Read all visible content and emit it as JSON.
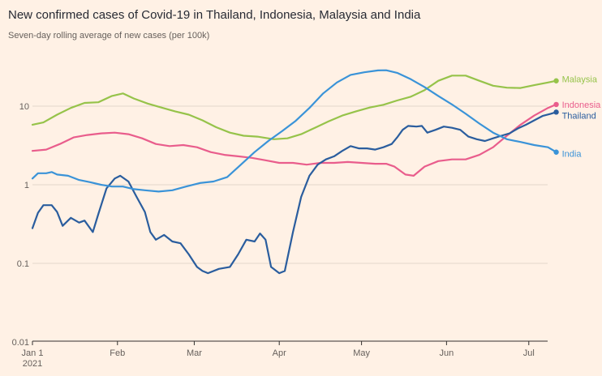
{
  "title": "New confirmed cases of Covid-19 in Thailand, Indonesia, Malaysia and India",
  "subtitle": "Seven-day rolling average of new cases (per 100k)",
  "chart_data": {
    "type": "line",
    "y_scale": "log",
    "ylim": [
      0.01,
      30
    ],
    "xlim": [
      "2021-01-01",
      "2021-07-12"
    ],
    "grid": "horizontal",
    "legend_placement": "direct labels at line ends",
    "y_ticks": [
      {
        "value": 10,
        "label": "10"
      },
      {
        "value": 1,
        "label": "1"
      },
      {
        "value": 0.1,
        "label": "0.1"
      },
      {
        "value": 0.01,
        "label": "0.01"
      }
    ],
    "x_ticks": [
      {
        "date": "2021-01-01",
        "label": "Jan 1",
        "sublabel": "2021"
      },
      {
        "date": "2021-02-01",
        "label": "Feb"
      },
      {
        "date": "2021-03-01",
        "label": "Mar"
      },
      {
        "date": "2021-04-01",
        "label": "Apr"
      },
      {
        "date": "2021-05-01",
        "label": "May"
      },
      {
        "date": "2021-06-01",
        "label": "Jun"
      },
      {
        "date": "2021-07-01",
        "label": "Jul"
      }
    ],
    "series": [
      {
        "name": "Malaysia",
        "color": "#96c34a",
        "points": [
          [
            "2021-01-01",
            5.8
          ],
          [
            "2021-01-05",
            6.2
          ],
          [
            "2021-01-10",
            7.8
          ],
          [
            "2021-01-15",
            9.5
          ],
          [
            "2021-01-20",
            11
          ],
          [
            "2021-01-25",
            11.2
          ],
          [
            "2021-01-30",
            13.5
          ],
          [
            "2021-02-03",
            14.5
          ],
          [
            "2021-02-07",
            12.5
          ],
          [
            "2021-02-12",
            10.8
          ],
          [
            "2021-02-17",
            9.6
          ],
          [
            "2021-02-22",
            8.6
          ],
          [
            "2021-02-27",
            7.8
          ],
          [
            "2021-03-04",
            6.6
          ],
          [
            "2021-03-09",
            5.4
          ],
          [
            "2021-03-14",
            4.6
          ],
          [
            "2021-03-19",
            4.2
          ],
          [
            "2021-03-24",
            4.1
          ],
          [
            "2021-03-30",
            3.8
          ],
          [
            "2021-04-04",
            3.9
          ],
          [
            "2021-04-09",
            4.4
          ],
          [
            "2021-04-14",
            5.3
          ],
          [
            "2021-04-19",
            6.4
          ],
          [
            "2021-04-24",
            7.6
          ],
          [
            "2021-04-29",
            8.6
          ],
          [
            "2021-05-04",
            9.6
          ],
          [
            "2021-05-09",
            10.4
          ],
          [
            "2021-05-14",
            11.8
          ],
          [
            "2021-05-19",
            13.2
          ],
          [
            "2021-05-24",
            16
          ],
          [
            "2021-05-29",
            21
          ],
          [
            "2021-06-03",
            24.5
          ],
          [
            "2021-06-08",
            24.5
          ],
          [
            "2021-06-13",
            21
          ],
          [
            "2021-06-18",
            18.2
          ],
          [
            "2021-06-23",
            17.2
          ],
          [
            "2021-06-28",
            17
          ],
          [
            "2021-07-03",
            18.5
          ],
          [
            "2021-07-08",
            20
          ],
          [
            "2021-07-11",
            21
          ]
        ]
      },
      {
        "name": "Indonesia",
        "color": "#e95d8c",
        "points": [
          [
            "2021-01-01",
            2.7
          ],
          [
            "2021-01-06",
            2.8
          ],
          [
            "2021-01-11",
            3.3
          ],
          [
            "2021-01-16",
            4.0
          ],
          [
            "2021-01-21",
            4.3
          ],
          [
            "2021-01-26",
            4.5
          ],
          [
            "2021-01-31",
            4.6
          ],
          [
            "2021-02-05",
            4.4
          ],
          [
            "2021-02-10",
            3.9
          ],
          [
            "2021-02-15",
            3.3
          ],
          [
            "2021-02-20",
            3.1
          ],
          [
            "2021-02-25",
            3.2
          ],
          [
            "2021-03-02",
            3.0
          ],
          [
            "2021-03-07",
            2.6
          ],
          [
            "2021-03-12",
            2.4
          ],
          [
            "2021-03-17",
            2.3
          ],
          [
            "2021-03-22",
            2.2
          ],
          [
            "2021-03-27",
            2.05
          ],
          [
            "2021-04-01",
            1.9
          ],
          [
            "2021-04-06",
            1.9
          ],
          [
            "2021-04-11",
            1.8
          ],
          [
            "2021-04-16",
            1.9
          ],
          [
            "2021-04-21",
            1.9
          ],
          [
            "2021-04-26",
            1.95
          ],
          [
            "2021-05-01",
            1.9
          ],
          [
            "2021-05-06",
            1.85
          ],
          [
            "2021-05-10",
            1.85
          ],
          [
            "2021-05-13",
            1.7
          ],
          [
            "2021-05-17",
            1.35
          ],
          [
            "2021-05-20",
            1.3
          ],
          [
            "2021-05-24",
            1.7
          ],
          [
            "2021-05-29",
            2.0
          ],
          [
            "2021-06-03",
            2.1
          ],
          [
            "2021-06-08",
            2.1
          ],
          [
            "2021-06-13",
            2.4
          ],
          [
            "2021-06-18",
            3.0
          ],
          [
            "2021-06-23",
            4.2
          ],
          [
            "2021-06-28",
            5.8
          ],
          [
            "2021-07-03",
            7.6
          ],
          [
            "2021-07-08",
            9.5
          ],
          [
            "2021-07-11",
            10.5
          ]
        ]
      },
      {
        "name": "Thailand",
        "color": "#2a5d9e",
        "points": [
          [
            "2021-01-01",
            0.28
          ],
          [
            "2021-01-03",
            0.44
          ],
          [
            "2021-01-05",
            0.55
          ],
          [
            "2021-01-08",
            0.55
          ],
          [
            "2021-01-10",
            0.45
          ],
          [
            "2021-01-12",
            0.3
          ],
          [
            "2021-01-15",
            0.38
          ],
          [
            "2021-01-18",
            0.33
          ],
          [
            "2021-01-20",
            0.35
          ],
          [
            "2021-01-23",
            0.25
          ],
          [
            "2021-01-25",
            0.42
          ],
          [
            "2021-01-28",
            0.9
          ],
          [
            "2021-01-31",
            1.2
          ],
          [
            "2021-02-02",
            1.3
          ],
          [
            "2021-02-05",
            1.1
          ],
          [
            "2021-02-08",
            0.7
          ],
          [
            "2021-02-11",
            0.45
          ],
          [
            "2021-02-13",
            0.25
          ],
          [
            "2021-02-15",
            0.2
          ],
          [
            "2021-02-18",
            0.23
          ],
          [
            "2021-02-21",
            0.19
          ],
          [
            "2021-02-24",
            0.18
          ],
          [
            "2021-02-27",
            0.13
          ],
          [
            "2021-03-02",
            0.09
          ],
          [
            "2021-03-04",
            0.08
          ],
          [
            "2021-03-06",
            0.075
          ],
          [
            "2021-03-10",
            0.085
          ],
          [
            "2021-03-14",
            0.09
          ],
          [
            "2021-03-17",
            0.13
          ],
          [
            "2021-03-20",
            0.2
          ],
          [
            "2021-03-23",
            0.19
          ],
          [
            "2021-03-25",
            0.24
          ],
          [
            "2021-03-27",
            0.2
          ],
          [
            "2021-03-29",
            0.09
          ],
          [
            "2021-04-01",
            0.075
          ],
          [
            "2021-04-03",
            0.08
          ],
          [
            "2021-04-06",
            0.25
          ],
          [
            "2021-04-09",
            0.7
          ],
          [
            "2021-04-12",
            1.3
          ],
          [
            "2021-04-15",
            1.8
          ],
          [
            "2021-04-18",
            2.1
          ],
          [
            "2021-04-21",
            2.3
          ],
          [
            "2021-04-24",
            2.7
          ],
          [
            "2021-04-27",
            3.1
          ],
          [
            "2021-04-30",
            2.9
          ],
          [
            "2021-05-03",
            2.9
          ],
          [
            "2021-05-06",
            2.8
          ],
          [
            "2021-05-09",
            3.0
          ],
          [
            "2021-05-12",
            3.3
          ],
          [
            "2021-05-14",
            4.0
          ],
          [
            "2021-05-16",
            5.0
          ],
          [
            "2021-05-18",
            5.6
          ],
          [
            "2021-05-21",
            5.5
          ],
          [
            "2021-05-23",
            5.6
          ],
          [
            "2021-05-25",
            4.6
          ],
          [
            "2021-05-28",
            5.0
          ],
          [
            "2021-05-31",
            5.5
          ],
          [
            "2021-06-03",
            5.3
          ],
          [
            "2021-06-06",
            5.0
          ],
          [
            "2021-06-09",
            4.1
          ],
          [
            "2021-06-12",
            3.8
          ],
          [
            "2021-06-15",
            3.6
          ],
          [
            "2021-06-18",
            3.9
          ],
          [
            "2021-06-21",
            4.2
          ],
          [
            "2021-06-24",
            4.5
          ],
          [
            "2021-06-27",
            5.2
          ],
          [
            "2021-06-30",
            5.8
          ],
          [
            "2021-07-03",
            6.6
          ],
          [
            "2021-07-06",
            7.5
          ],
          [
            "2021-07-09",
            8.0
          ],
          [
            "2021-07-11",
            8.4
          ]
        ]
      },
      {
        "name": "India",
        "color": "#3a93d8",
        "points": [
          [
            "2021-01-01",
            1.2
          ],
          [
            "2021-01-03",
            1.4
          ],
          [
            "2021-01-06",
            1.4
          ],
          [
            "2021-01-08",
            1.45
          ],
          [
            "2021-01-10",
            1.35
          ],
          [
            "2021-01-14",
            1.3
          ],
          [
            "2021-01-18",
            1.15
          ],
          [
            "2021-01-22",
            1.08
          ],
          [
            "2021-01-26",
            1.0
          ],
          [
            "2021-01-30",
            0.95
          ],
          [
            "2021-02-03",
            0.95
          ],
          [
            "2021-02-07",
            0.88
          ],
          [
            "2021-02-11",
            0.85
          ],
          [
            "2021-02-16",
            0.82
          ],
          [
            "2021-02-21",
            0.85
          ],
          [
            "2021-02-26",
            0.95
          ],
          [
            "2021-03-03",
            1.05
          ],
          [
            "2021-03-08",
            1.1
          ],
          [
            "2021-03-13",
            1.25
          ],
          [
            "2021-03-18",
            1.8
          ],
          [
            "2021-03-23",
            2.6
          ],
          [
            "2021-03-28",
            3.6
          ],
          [
            "2021-04-02",
            4.8
          ],
          [
            "2021-04-07",
            6.5
          ],
          [
            "2021-04-12",
            9.5
          ],
          [
            "2021-04-17",
            14.5
          ],
          [
            "2021-04-22",
            20
          ],
          [
            "2021-04-27",
            25
          ],
          [
            "2021-05-02",
            27
          ],
          [
            "2021-05-07",
            28.5
          ],
          [
            "2021-05-10",
            28.6
          ],
          [
            "2021-05-14",
            26.5
          ],
          [
            "2021-05-19",
            22
          ],
          [
            "2021-05-24",
            17.5
          ],
          [
            "2021-05-29",
            13.5
          ],
          [
            "2021-06-03",
            10.5
          ],
          [
            "2021-06-08",
            8.0
          ],
          [
            "2021-06-13",
            6.0
          ],
          [
            "2021-06-18",
            4.6
          ],
          [
            "2021-06-23",
            3.8
          ],
          [
            "2021-06-28",
            3.5
          ],
          [
            "2021-07-03",
            3.2
          ],
          [
            "2021-07-08",
            3.0
          ],
          [
            "2021-07-11",
            2.6
          ]
        ]
      }
    ]
  }
}
